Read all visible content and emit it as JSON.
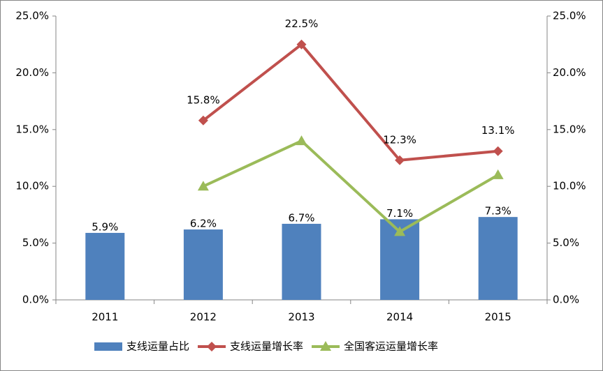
{
  "chart_data": {
    "type": "bar",
    "categories": [
      "2011",
      "2012",
      "2013",
      "2014",
      "2015"
    ],
    "series": [
      {
        "name": "支线运量占比",
        "type": "bar",
        "color": "#4f81bd",
        "values": [
          5.9,
          6.2,
          6.7,
          7.1,
          7.3
        ],
        "value_labels": [
          "5.9%",
          "6.2%",
          "6.7%",
          "7.1%",
          "7.3%"
        ]
      },
      {
        "name": "支线运量增长率",
        "type": "line",
        "axis": "y2",
        "marker": "diamond",
        "color": "#c0504d",
        "values": [
          null,
          15.8,
          22.5,
          12.3,
          13.1
        ],
        "value_labels": [
          null,
          "15.8%",
          "22.5%",
          "12.3%",
          "13.1%"
        ]
      },
      {
        "name": "全国客运运量增长率",
        "type": "line",
        "axis": "y2",
        "marker": "triangle",
        "color": "#9bbb59",
        "values": [
          null,
          10,
          14,
          6,
          11
        ]
      }
    ],
    "ylim": [
      0,
      25
    ],
    "yticks": [
      {
        "value": 0,
        "label": "0.0%"
      },
      {
        "value": 5,
        "label": "5.0%"
      },
      {
        "value": 10,
        "label": "10.0%"
      },
      {
        "value": 15,
        "label": "15.0%"
      },
      {
        "value": 20,
        "label": "20.0%"
      },
      {
        "value": 25,
        "label": "25.0%"
      }
    ],
    "y2lim": [
      0,
      25
    ],
    "y2ticks": [
      {
        "value": 0,
        "label": "0.0%"
      },
      {
        "value": 5,
        "label": "5.0%"
      },
      {
        "value": 10,
        "label": "10.0%"
      },
      {
        "value": 15,
        "label": "15.0%"
      },
      {
        "value": 20,
        "label": "20.0%"
      },
      {
        "value": 25,
        "label": "25.0%"
      }
    ],
    "legend": "bottom"
  }
}
